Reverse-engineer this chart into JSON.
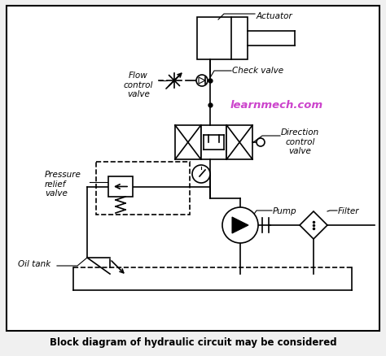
{
  "title": "Block diagram of hydraulic circuit may be considered",
  "watermark": "learnmech.com",
  "watermark_color": "#cc44cc",
  "background_color": "#f5f5f5",
  "border_color": "#000000",
  "line_color": "#000000",
  "labels": {
    "actuator": "Actuator",
    "flow_control_valve": "Flow\ncontrol\nvalve",
    "check_valve": "Check valve",
    "direction_control_valve": "Direction\ncontrol\nvalve",
    "pressure_relief_valve": "Pressure\nrelief\nvalve",
    "pump": "Pump",
    "filter": "Filter",
    "oil_tank": "Oil tank"
  }
}
